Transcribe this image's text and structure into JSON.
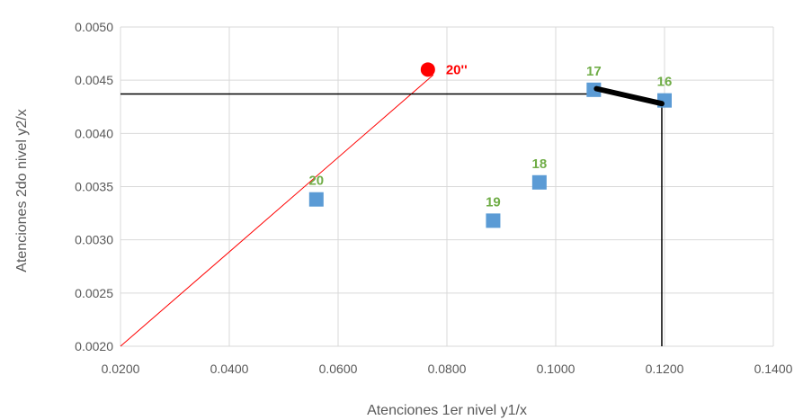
{
  "chart_data": {
    "type": "scatter",
    "xlabel": "Atenciones 1er nivel y1/x",
    "ylabel": "Atenciones 2do nivel y2/x",
    "xlim": [
      0.02,
      0.14
    ],
    "ylim": [
      0.002,
      0.005
    ],
    "x_ticks": [
      "0.0200",
      "0.0400",
      "0.0600",
      "0.0800",
      "0.1000",
      "0.1200",
      "0.1400"
    ],
    "x_tick_values": [
      0.02,
      0.04,
      0.06,
      0.08,
      0.1,
      0.12,
      0.14
    ],
    "y_ticks": [
      "0.0020",
      "0.0025",
      "0.0030",
      "0.0035",
      "0.0040",
      "0.0045",
      "0.0050"
    ],
    "y_tick_values": [
      0.002,
      0.0025,
      0.003,
      0.0035,
      0.004,
      0.0045,
      0.005
    ],
    "grid": true,
    "series": [
      {
        "marker": "square",
        "color": "#5B9BD5",
        "label_color": "#70AD47",
        "points": [
          {
            "label": "16",
            "x": 0.12,
            "y": 0.00431
          },
          {
            "label": "17",
            "x": 0.107,
            "y": 0.00441
          },
          {
            "label": "18",
            "x": 0.097,
            "y": 0.00354
          },
          {
            "label": "19",
            "x": 0.0885,
            "y": 0.00318
          },
          {
            "label": "20",
            "x": 0.056,
            "y": 0.00338
          }
        ]
      },
      {
        "marker": "circle",
        "color": "#FF0000",
        "label_color": "#FF0000",
        "points": [
          {
            "label": "20''",
            "x": 0.0765,
            "y": 0.0046
          }
        ]
      }
    ],
    "annotations": {
      "red_line": {
        "color": "#FF0000",
        "from": [
          0.02,
          0.002
        ],
        "to": [
          0.0775,
          0.00455
        ]
      },
      "horizontal_line": {
        "color": "#000000",
        "y": 0.00437,
        "from_x": 0.02,
        "to_x": 0.1075
      },
      "vertical_line": {
        "color": "#000000",
        "x": 0.1195,
        "from_y": 0.002,
        "to_y": 0.00428
      },
      "thick_segment": {
        "color": "#000000",
        "from": [
          0.1075,
          0.00442
        ],
        "to": [
          0.1195,
          0.00428
        ]
      }
    }
  }
}
